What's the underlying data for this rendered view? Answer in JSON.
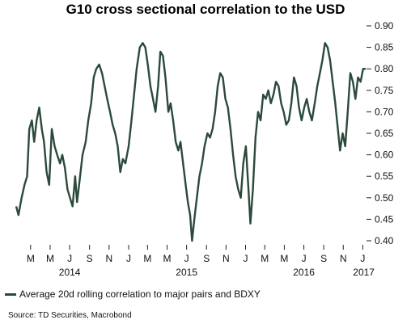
{
  "chart_data": {
    "type": "line",
    "title": "G10 cross sectional correlation to the USD",
    "xlabel": "",
    "ylabel": "",
    "ylim": [
      0.4,
      0.9
    ],
    "yticks": [
      "0.90",
      "0.85",
      "0.80",
      "0.75",
      "0.70",
      "0.65",
      "0.60",
      "0.55",
      "0.50",
      "0.45",
      "0.40"
    ],
    "y_tick_values": [
      0.9,
      0.85,
      0.8,
      0.75,
      0.7,
      0.65,
      0.6,
      0.55,
      0.5,
      0.45,
      0.4
    ],
    "x_range": [
      "2014-01-15",
      "2017-01-10"
    ],
    "month_ticks": [
      {
        "label": "M",
        "date": "2014-03-01"
      },
      {
        "label": "M",
        "date": "2014-05-01"
      },
      {
        "label": "J",
        "date": "2014-07-01"
      },
      {
        "label": "S",
        "date": "2014-09-01"
      },
      {
        "label": "N",
        "date": "2014-11-01"
      },
      {
        "label": "J",
        "date": "2015-01-01"
      },
      {
        "label": "M",
        "date": "2015-03-01"
      },
      {
        "label": "M",
        "date": "2015-05-01"
      },
      {
        "label": "J",
        "date": "2015-07-01"
      },
      {
        "label": "S",
        "date": "2015-09-01"
      },
      {
        "label": "N",
        "date": "2015-11-01"
      },
      {
        "label": "J",
        "date": "2016-01-01"
      },
      {
        "label": "M",
        "date": "2016-03-01"
      },
      {
        "label": "M",
        "date": "2016-05-01"
      },
      {
        "label": "J",
        "date": "2016-07-01"
      },
      {
        "label": "S",
        "date": "2016-09-01"
      },
      {
        "label": "N",
        "date": "2016-11-01"
      },
      {
        "label": "J",
        "date": "2017-01-01"
      }
    ],
    "year_labels": [
      {
        "label": "2014",
        "date": "2014-07-01"
      },
      {
        "label": "2015",
        "date": "2015-07-01"
      },
      {
        "label": "2016",
        "date": "2016-07-01"
      },
      {
        "label": "2017",
        "date": "2017-01-04"
      }
    ],
    "series": [
      {
        "name": "Average 20d rolling correlation to major pairs and BDXY",
        "color": "#2b4a3b",
        "points": [
          [
            "2014-01-15",
            0.48
          ],
          [
            "2014-01-22",
            0.46
          ],
          [
            "2014-02-01",
            0.5
          ],
          [
            "2014-02-10",
            0.53
          ],
          [
            "2014-02-18",
            0.55
          ],
          [
            "2014-02-25",
            0.66
          ],
          [
            "2014-03-05",
            0.68
          ],
          [
            "2014-03-12",
            0.63
          ],
          [
            "2014-03-20",
            0.68
          ],
          [
            "2014-03-28",
            0.71
          ],
          [
            "2014-04-05",
            0.66
          ],
          [
            "2014-04-12",
            0.63
          ],
          [
            "2014-04-20",
            0.56
          ],
          [
            "2014-04-28",
            0.53
          ],
          [
            "2014-05-06",
            0.66
          ],
          [
            "2014-05-15",
            0.62
          ],
          [
            "2014-05-23",
            0.6
          ],
          [
            "2014-06-01",
            0.58
          ],
          [
            "2014-06-08",
            0.6
          ],
          [
            "2014-06-16",
            0.57
          ],
          [
            "2014-06-24",
            0.52
          ],
          [
            "2014-07-02",
            0.5
          ],
          [
            "2014-07-10",
            0.48
          ],
          [
            "2014-07-18",
            0.55
          ],
          [
            "2014-07-24",
            0.49
          ],
          [
            "2014-08-01",
            0.54
          ],
          [
            "2014-08-10",
            0.6
          ],
          [
            "2014-08-20",
            0.63
          ],
          [
            "2014-08-28",
            0.68
          ],
          [
            "2014-09-06",
            0.72
          ],
          [
            "2014-09-14",
            0.78
          ],
          [
            "2014-09-22",
            0.8
          ],
          [
            "2014-10-01",
            0.81
          ],
          [
            "2014-10-10",
            0.79
          ],
          [
            "2014-10-18",
            0.76
          ],
          [
            "2014-10-26",
            0.73
          ],
          [
            "2014-11-04",
            0.7
          ],
          [
            "2014-11-12",
            0.67
          ],
          [
            "2014-11-20",
            0.65
          ],
          [
            "2014-11-28",
            0.62
          ],
          [
            "2014-12-06",
            0.56
          ],
          [
            "2014-12-14",
            0.59
          ],
          [
            "2014-12-22",
            0.58
          ],
          [
            "2015-01-01",
            0.62
          ],
          [
            "2015-01-10",
            0.68
          ],
          [
            "2015-01-18",
            0.74
          ],
          [
            "2015-01-26",
            0.8
          ],
          [
            "2015-02-05",
            0.85
          ],
          [
            "2015-02-14",
            0.86
          ],
          [
            "2015-02-22",
            0.85
          ],
          [
            "2015-03-02",
            0.81
          ],
          [
            "2015-03-10",
            0.76
          ],
          [
            "2015-03-18",
            0.73
          ],
          [
            "2015-03-26",
            0.7
          ],
          [
            "2015-04-03",
            0.76
          ],
          [
            "2015-04-10",
            0.84
          ],
          [
            "2015-04-18",
            0.83
          ],
          [
            "2015-04-26",
            0.78
          ],
          [
            "2015-05-05",
            0.7
          ],
          [
            "2015-05-12",
            0.72
          ],
          [
            "2015-05-20",
            0.68
          ],
          [
            "2015-05-28",
            0.63
          ],
          [
            "2015-06-05",
            0.61
          ],
          [
            "2015-06-12",
            0.63
          ],
          [
            "2015-06-20",
            0.58
          ],
          [
            "2015-06-28",
            0.53
          ],
          [
            "2015-07-05",
            0.49
          ],
          [
            "2015-07-12",
            0.46
          ],
          [
            "2015-07-18",
            0.4
          ],
          [
            "2015-07-25",
            0.45
          ],
          [
            "2015-08-02",
            0.5
          ],
          [
            "2015-08-10",
            0.55
          ],
          [
            "2015-08-18",
            0.58
          ],
          [
            "2015-08-26",
            0.62
          ],
          [
            "2015-09-04",
            0.65
          ],
          [
            "2015-09-12",
            0.64
          ],
          [
            "2015-09-20",
            0.66
          ],
          [
            "2015-09-28",
            0.7
          ],
          [
            "2015-10-06",
            0.76
          ],
          [
            "2015-10-14",
            0.79
          ],
          [
            "2015-10-22",
            0.78
          ],
          [
            "2015-10-30",
            0.73
          ],
          [
            "2015-11-07",
            0.71
          ],
          [
            "2015-11-15",
            0.66
          ],
          [
            "2015-11-23",
            0.6
          ],
          [
            "2015-12-01",
            0.55
          ],
          [
            "2015-12-09",
            0.52
          ],
          [
            "2015-12-17",
            0.5
          ],
          [
            "2015-12-25",
            0.58
          ],
          [
            "2016-01-02",
            0.62
          ],
          [
            "2016-01-10",
            0.52
          ],
          [
            "2016-01-16",
            0.44
          ],
          [
            "2016-01-24",
            0.52
          ],
          [
            "2016-02-01",
            0.64
          ],
          [
            "2016-02-09",
            0.7
          ],
          [
            "2016-02-17",
            0.68
          ],
          [
            "2016-02-25",
            0.74
          ],
          [
            "2016-03-04",
            0.73
          ],
          [
            "2016-03-12",
            0.75
          ],
          [
            "2016-03-20",
            0.72
          ],
          [
            "2016-03-28",
            0.74
          ],
          [
            "2016-04-05",
            0.77
          ],
          [
            "2016-04-13",
            0.76
          ],
          [
            "2016-04-21",
            0.72
          ],
          [
            "2016-04-29",
            0.7
          ],
          [
            "2016-05-07",
            0.67
          ],
          [
            "2016-05-15",
            0.68
          ],
          [
            "2016-05-23",
            0.72
          ],
          [
            "2016-05-31",
            0.78
          ],
          [
            "2016-06-08",
            0.76
          ],
          [
            "2016-06-16",
            0.71
          ],
          [
            "2016-06-24",
            0.68
          ],
          [
            "2016-07-02",
            0.71
          ],
          [
            "2016-07-10",
            0.73
          ],
          [
            "2016-07-18",
            0.7
          ],
          [
            "2016-07-26",
            0.68
          ],
          [
            "2016-08-04",
            0.72
          ],
          [
            "2016-08-12",
            0.76
          ],
          [
            "2016-08-20",
            0.79
          ],
          [
            "2016-08-28",
            0.82
          ],
          [
            "2016-09-05",
            0.86
          ],
          [
            "2016-09-13",
            0.85
          ],
          [
            "2016-09-21",
            0.82
          ],
          [
            "2016-09-29",
            0.77
          ],
          [
            "2016-10-07",
            0.72
          ],
          [
            "2016-10-15",
            0.66
          ],
          [
            "2016-10-22",
            0.61
          ],
          [
            "2016-10-30",
            0.65
          ],
          [
            "2016-11-07",
            0.62
          ],
          [
            "2016-11-15",
            0.7
          ],
          [
            "2016-11-23",
            0.79
          ],
          [
            "2016-12-01",
            0.77
          ],
          [
            "2016-12-09",
            0.73
          ],
          [
            "2016-12-17",
            0.78
          ],
          [
            "2016-12-25",
            0.77
          ],
          [
            "2017-01-02",
            0.8
          ],
          [
            "2017-01-10",
            0.8
          ]
        ]
      }
    ],
    "legend": {
      "position": "bottom-left",
      "label": "Average 20d rolling correlation to major pairs and BDXY"
    },
    "grid": false
  },
  "source": "Source: TD Securities, Macrobond"
}
